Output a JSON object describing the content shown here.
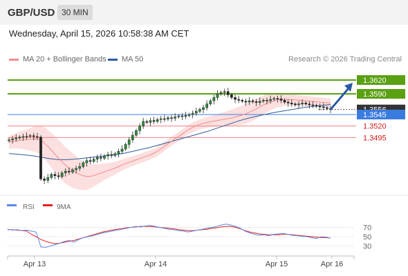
{
  "header": {
    "pair": "GBP/USD",
    "timeframe": "30 MIN"
  },
  "datetime": "Wednesday, April 15, 2026 10:58:38 AM CET",
  "credit": "Research © 2026 Trading Central",
  "colors": {
    "ma20": "#f08c8c",
    "ma50": "#2c5a9c",
    "band": "#fbd4d4",
    "resistance": "#5aa012",
    "support": "#f08080",
    "current": "#3a7be0",
    "arrow": "#2c5aa0",
    "rsi": "#5b86e5",
    "rsi_ma": "#e0201e"
  },
  "chart_data": [
    {
      "type": "candlestick",
      "legend": [
        {
          "name": "MA 20 + Bollinger Bands",
          "color": "#f08c8c"
        },
        {
          "name": "MA 50",
          "color": "#2c5a9c"
        }
      ],
      "ylim": [
        1.338,
        1.365
      ],
      "x_ticks": [
        "Apr 13",
        "Apr 14",
        "Apr 15",
        "Apr 16"
      ],
      "levels": [
        {
          "value": 1.362,
          "label": "1.3620",
          "kind": "resistance"
        },
        {
          "value": 1.359,
          "label": "1.3590",
          "kind": "resistance"
        },
        {
          "value": 1.3556,
          "label": "1.3556",
          "kind": "last"
        },
        {
          "value": 1.3545,
          "label": "1.3545",
          "kind": "current"
        },
        {
          "value": 1.352,
          "label": "1.3520",
          "kind": "support"
        },
        {
          "value": 1.3495,
          "label": "1.3495",
          "kind": "support"
        }
      ],
      "close": [
        1.349,
        1.3492,
        1.3494,
        1.3496,
        1.3497,
        1.3498,
        1.3499,
        1.3497,
        1.3496,
        1.3405,
        1.3402,
        1.3408,
        1.3415,
        1.3412,
        1.341,
        1.3418,
        1.3422,
        1.342,
        1.3425,
        1.3428,
        1.3432,
        1.344,
        1.3445,
        1.3443,
        1.3448,
        1.3452,
        1.345,
        1.3455,
        1.3458,
        1.3456,
        1.346,
        1.3465,
        1.347,
        1.348,
        1.349,
        1.35,
        1.351,
        1.352,
        1.353,
        1.3528,
        1.3532,
        1.353,
        1.3534,
        1.3536,
        1.3535,
        1.3538,
        1.3537,
        1.354,
        1.3542,
        1.3541,
        1.3543,
        1.3545,
        1.3548,
        1.3552,
        1.3556,
        1.356,
        1.3568,
        1.3575,
        1.3582,
        1.359,
        1.3593,
        1.3595,
        1.3588,
        1.3582,
        1.3578,
        1.3576,
        1.3574,
        1.3572,
        1.3575,
        1.3573,
        1.3571,
        1.3574,
        1.3576,
        1.3575,
        1.3578,
        1.358,
        1.3579,
        1.3576,
        1.3572,
        1.357,
        1.3568,
        1.3566,
        1.3568,
        1.357,
        1.3568,
        1.3566,
        1.3565,
        1.3563,
        1.3562,
        1.356,
        1.3558,
        1.3556
      ],
      "ma20": [
        1.3485,
        1.3487,
        1.3489,
        1.349,
        1.3491,
        1.3492,
        1.349,
        1.348,
        1.3468,
        1.3455,
        1.3443,
        1.3432,
        1.3424,
        1.3417,
        1.3412,
        1.341,
        1.3412,
        1.3416,
        1.342,
        1.3424,
        1.3428,
        1.3433,
        1.3438,
        1.3442,
        1.3446,
        1.345,
        1.3454,
        1.3458,
        1.3464,
        1.3472,
        1.348,
        1.3488,
        1.3496,
        1.3504,
        1.3512,
        1.3518,
        1.3523,
        1.3526,
        1.3529,
        1.3531,
        1.3533,
        1.3535,
        1.3537,
        1.354,
        1.3543,
        1.3547,
        1.3552,
        1.3558,
        1.3564,
        1.357,
        1.3574,
        1.3577,
        1.3578,
        1.3578,
        1.3577,
        1.3576,
        1.3575,
        1.3574,
        1.3573,
        1.3572,
        1.3571,
        1.357
      ],
      "ma50": [
        1.346,
        1.3459,
        1.3457,
        1.3455,
        1.3452,
        1.3449,
        1.3447,
        1.3447,
        1.3448,
        1.345,
        1.3452,
        1.3454,
        1.3456,
        1.3458,
        1.3461,
        1.3465,
        1.3469,
        1.3473,
        1.3478,
        1.3483,
        1.3488,
        1.3493,
        1.3498,
        1.3503,
        1.3508,
        1.3514,
        1.352,
        1.3526,
        1.3532,
        1.3537,
        1.3541,
        1.3545,
        1.3549,
        1.3552,
        1.3555,
        1.3558,
        1.3561,
        1.3563,
        1.3565,
        1.3567
      ],
      "forecast": {
        "from": 1.3556,
        "to": 1.362
      }
    },
    {
      "type": "line",
      "legend": [
        {
          "name": "RSI",
          "color": "#5b86e5"
        },
        {
          "name": "9MA",
          "color": "#e0201e"
        }
      ],
      "ylim": [
        10,
        90
      ],
      "y_ticks": [
        70,
        50,
        30
      ],
      "rsi": [
        66,
        64,
        65,
        63,
        64,
        62,
        60,
        28,
        27,
        30,
        33,
        36,
        40,
        42,
        38,
        44,
        48,
        50,
        52,
        55,
        58,
        60,
        62,
        64,
        66,
        68,
        70,
        72,
        71,
        73,
        74,
        72,
        70,
        68,
        66,
        65,
        63,
        62,
        60,
        62,
        64,
        66,
        68,
        70,
        72,
        75,
        77,
        75,
        72,
        68,
        62,
        58,
        55,
        53,
        54,
        52,
        55,
        56,
        57,
        55,
        53,
        52,
        51,
        50,
        48,
        46,
        50,
        49,
        47
      ],
      "rsi_ma": [
        65,
        65,
        64,
        63,
        62,
        55,
        50,
        44,
        40,
        37,
        35,
        36,
        38,
        40,
        42,
        45,
        48,
        51,
        54,
        57,
        60,
        62,
        64,
        66,
        67,
        69,
        70,
        71,
        72,
        72,
        72,
        71,
        70,
        69,
        68,
        67,
        65,
        64,
        63,
        63,
        64,
        65,
        66,
        68,
        69,
        71,
        72,
        72,
        70,
        67,
        63,
        60,
        58,
        56,
        55,
        54,
        54,
        54,
        55,
        55,
        54,
        53,
        52,
        51,
        50,
        49,
        48,
        48,
        47
      ]
    }
  ]
}
